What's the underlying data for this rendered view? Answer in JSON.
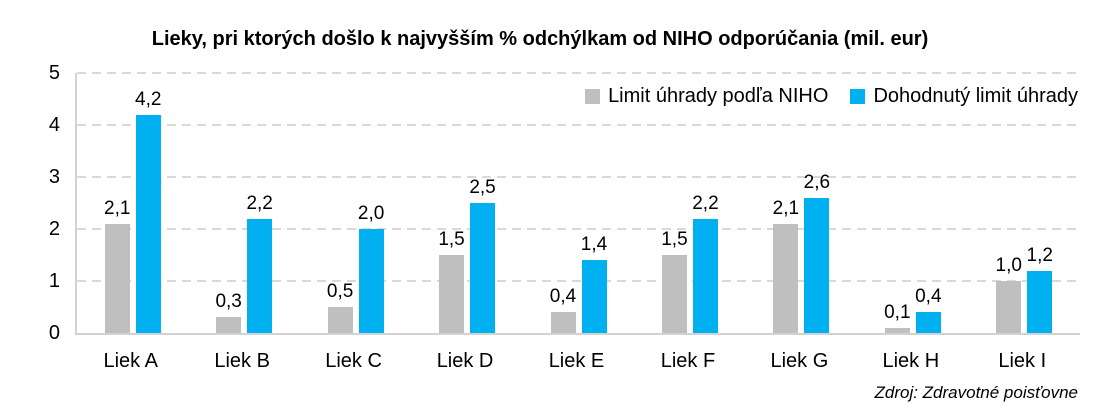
{
  "chart_data": {
    "type": "bar",
    "title": "Lieky, pri ktorých došlo k najvyšším % odchýlkam od NIHO odporúčania (mil. eur)",
    "categories": [
      "Liek A",
      "Liek B",
      "Liek C",
      "Liek D",
      "Liek E",
      "Liek F",
      "Liek G",
      "Liek H",
      "Liek I"
    ],
    "series": [
      {
        "name": "Limit úhrady podľa NIHO",
        "color": "#bfbfbf",
        "values": [
          2.1,
          0.3,
          0.5,
          1.5,
          0.4,
          1.5,
          2.1,
          0.1,
          1.0
        ],
        "labels": [
          "2,1",
          "0,3",
          "0,5",
          "1,5",
          "0,4",
          "1,5",
          "2,1",
          "0,1",
          "1,0"
        ]
      },
      {
        "name": "Dohodnutý limit úhrady",
        "color": "#00b0f0",
        "values": [
          4.2,
          2.2,
          2.0,
          2.5,
          1.4,
          2.2,
          2.6,
          0.4,
          1.2
        ],
        "labels": [
          "4,2",
          "2,2",
          "2,0",
          "2,5",
          "1,4",
          "2,2",
          "2,6",
          "0,4",
          "1,2"
        ]
      }
    ],
    "y_ticks": [
      0,
      1,
      2,
      3,
      4,
      5
    ],
    "ylim": [
      0,
      5
    ],
    "xlabel": "",
    "ylabel": "",
    "grid": "horizontal-dashed",
    "gridline_color": "#d9d9d9",
    "axis_line_color": "#d2d2d2",
    "legend_position": "top-right-inside",
    "source": "Zdroj: Zdravotné poisťovne"
  }
}
